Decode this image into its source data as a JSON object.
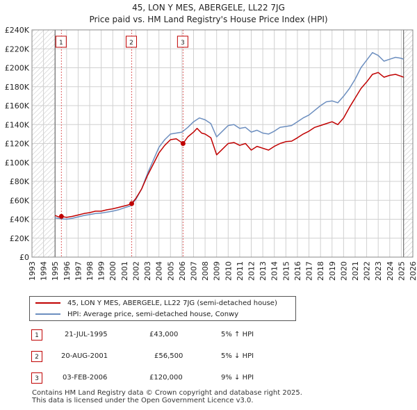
{
  "colors": {
    "price": "#c00000",
    "hpi": "#6c8ebf",
    "grid": "#d0d0d0",
    "marker_line": "#e06060",
    "hatch": "#cccccc",
    "plot_bg": "#ffffff"
  },
  "chart_data": {
    "type": "line",
    "title": "45, LON Y MES, ABERGELE, LL22 7JG",
    "subtitle": "Price paid vs. HM Land Registry's House Price Index (HPI)",
    "xlim": [
      1993,
      2026
    ],
    "ylim": [
      0,
      240000
    ],
    "x_ticks": [
      "1993",
      "1994",
      "1995",
      "1996",
      "1997",
      "1998",
      "1999",
      "2000",
      "2001",
      "2002",
      "2003",
      "2004",
      "2005",
      "2006",
      "2007",
      "2008",
      "2009",
      "2010",
      "2011",
      "2012",
      "2013",
      "2014",
      "2015",
      "2016",
      "2017",
      "2018",
      "2019",
      "2020",
      "2021",
      "2022",
      "2023",
      "2024",
      "2025",
      "2026"
    ],
    "y_ticks": [
      {
        "value": 0,
        "label": "£0"
      },
      {
        "value": 20000,
        "label": "£20K"
      },
      {
        "value": 40000,
        "label": "£40K"
      },
      {
        "value": 60000,
        "label": "£60K"
      },
      {
        "value": 80000,
        "label": "£80K"
      },
      {
        "value": 100000,
        "label": "£100K"
      },
      {
        "value": 120000,
        "label": "£120K"
      },
      {
        "value": 140000,
        "label": "£140K"
      },
      {
        "value": 160000,
        "label": "£160K"
      },
      {
        "value": 180000,
        "label": "£180K"
      },
      {
        "value": 200000,
        "label": "£200K"
      },
      {
        "value": 220000,
        "label": "£220K"
      },
      {
        "value": 240000,
        "label": "£240K"
      }
    ],
    "data_start": 1995.0,
    "data_end": 2025.2,
    "series": [
      {
        "name": "45, LON Y MES, ABERGELE, LL22 7JG (semi-detached house)",
        "color": "#c00000",
        "points": [
          [
            1995.0,
            44000
          ],
          [
            1995.3,
            42500
          ],
          [
            1995.55,
            43000
          ],
          [
            1996.0,
            42000
          ],
          [
            1996.5,
            43000
          ],
          [
            1997.0,
            44500
          ],
          [
            1997.5,
            46000
          ],
          [
            1998.0,
            47000
          ],
          [
            1998.5,
            48500
          ],
          [
            1999.0,
            48500
          ],
          [
            1999.5,
            50000
          ],
          [
            2000.0,
            51000
          ],
          [
            2000.5,
            52500
          ],
          [
            2001.0,
            54000
          ],
          [
            2001.3,
            55000
          ],
          [
            2001.64,
            56500
          ],
          [
            2002.0,
            62000
          ],
          [
            2002.5,
            72000
          ],
          [
            2003.0,
            86000
          ],
          [
            2003.5,
            98000
          ],
          [
            2004.0,
            110000
          ],
          [
            2004.5,
            118000
          ],
          [
            2005.0,
            124000
          ],
          [
            2005.5,
            125000
          ],
          [
            2006.09,
            120000
          ],
          [
            2006.5,
            127000
          ],
          [
            2007.0,
            132000
          ],
          [
            2007.3,
            136000
          ],
          [
            2007.7,
            131000
          ],
          [
            2008.0,
            130000
          ],
          [
            2008.5,
            126000
          ],
          [
            2009.0,
            108000
          ],
          [
            2009.5,
            114000
          ],
          [
            2010.0,
            120000
          ],
          [
            2010.5,
            121000
          ],
          [
            2011.0,
            118000
          ],
          [
            2011.5,
            120000
          ],
          [
            2012.0,
            113000
          ],
          [
            2012.5,
            117000
          ],
          [
            2013.0,
            115000
          ],
          [
            2013.5,
            113000
          ],
          [
            2014.0,
            117000
          ],
          [
            2014.5,
            120000
          ],
          [
            2015.0,
            122000
          ],
          [
            2015.5,
            122500
          ],
          [
            2016.0,
            126000
          ],
          [
            2016.5,
            130000
          ],
          [
            2017.0,
            133000
          ],
          [
            2017.5,
            137000
          ],
          [
            2018.0,
            139000
          ],
          [
            2018.5,
            141000
          ],
          [
            2019.0,
            143000
          ],
          [
            2019.5,
            140000
          ],
          [
            2020.0,
            147000
          ],
          [
            2020.5,
            158000
          ],
          [
            2021.0,
            168000
          ],
          [
            2021.5,
            178000
          ],
          [
            2022.0,
            185000
          ],
          [
            2022.5,
            193000
          ],
          [
            2023.0,
            195000
          ],
          [
            2023.5,
            190000
          ],
          [
            2024.0,
            192000
          ],
          [
            2024.5,
            193000
          ],
          [
            2025.0,
            191000
          ],
          [
            2025.2,
            190000
          ]
        ]
      },
      {
        "name": "HPI: Average price, semi-detached house, Conwy",
        "color": "#6c8ebf",
        "points": [
          [
            1995.0,
            41500
          ],
          [
            1995.5,
            40500
          ],
          [
            1996.0,
            40000
          ],
          [
            1996.5,
            41000
          ],
          [
            1997.0,
            42500
          ],
          [
            1997.5,
            44000
          ],
          [
            1998.0,
            45000
          ],
          [
            1998.5,
            46000
          ],
          [
            1999.0,
            46500
          ],
          [
            1999.5,
            47500
          ],
          [
            2000.0,
            48500
          ],
          [
            2000.5,
            50000
          ],
          [
            2001.0,
            52000
          ],
          [
            2001.5,
            54000
          ],
          [
            2002.0,
            61000
          ],
          [
            2002.5,
            72000
          ],
          [
            2003.0,
            88000
          ],
          [
            2003.5,
            102000
          ],
          [
            2004.0,
            116000
          ],
          [
            2004.5,
            124000
          ],
          [
            2005.0,
            130000
          ],
          [
            2005.5,
            131000
          ],
          [
            2006.0,
            132000
          ],
          [
            2006.5,
            137000
          ],
          [
            2007.0,
            143000
          ],
          [
            2007.5,
            147000
          ],
          [
            2008.0,
            145000
          ],
          [
            2008.5,
            141000
          ],
          [
            2009.0,
            127000
          ],
          [
            2009.5,
            133000
          ],
          [
            2010.0,
            139000
          ],
          [
            2010.5,
            140000
          ],
          [
            2011.0,
            136000
          ],
          [
            2011.5,
            137000
          ],
          [
            2012.0,
            132000
          ],
          [
            2012.5,
            134000
          ],
          [
            2013.0,
            131000
          ],
          [
            2013.5,
            130000
          ],
          [
            2014.0,
            133000
          ],
          [
            2014.5,
            137000
          ],
          [
            2015.0,
            138000
          ],
          [
            2015.5,
            139000
          ],
          [
            2016.0,
            143000
          ],
          [
            2016.5,
            147000
          ],
          [
            2017.0,
            150000
          ],
          [
            2017.5,
            155000
          ],
          [
            2018.0,
            160000
          ],
          [
            2018.5,
            164000
          ],
          [
            2019.0,
            165000
          ],
          [
            2019.5,
            163000
          ],
          [
            2020.0,
            170000
          ],
          [
            2020.5,
            178000
          ],
          [
            2021.0,
            188000
          ],
          [
            2021.5,
            200000
          ],
          [
            2022.0,
            208000
          ],
          [
            2022.5,
            216000
          ],
          [
            2023.0,
            213000
          ],
          [
            2023.5,
            207000
          ],
          [
            2024.0,
            209000
          ],
          [
            2024.5,
            211000
          ],
          [
            2025.0,
            210000
          ],
          [
            2025.2,
            209000
          ]
        ]
      }
    ],
    "sales": [
      {
        "label": "1",
        "x": 1995.55,
        "value": 43000
      },
      {
        "label": "2",
        "x": 2001.64,
        "value": 56500
      },
      {
        "label": "3",
        "x": 2006.09,
        "value": 120000
      }
    ]
  },
  "legend": {
    "price_label": "45, LON Y MES, ABERGELE, LL22 7JG (semi-detached house)",
    "hpi_label": "HPI: Average price, semi-detached house, Conwy"
  },
  "transactions": [
    {
      "num": "1",
      "date": "21-JUL-1995",
      "price": "£43,000",
      "hpi": "5% ↑ HPI"
    },
    {
      "num": "2",
      "date": "20-AUG-2001",
      "price": "£56,500",
      "hpi": "5% ↓ HPI"
    },
    {
      "num": "3",
      "date": "03-FEB-2006",
      "price": "£120,000",
      "hpi": "9% ↓ HPI"
    }
  ],
  "footer": {
    "line1": "Contains HM Land Registry data © Crown copyright and database right 2025.",
    "line2": "This data is licensed under the Open Government Licence v3.0."
  }
}
